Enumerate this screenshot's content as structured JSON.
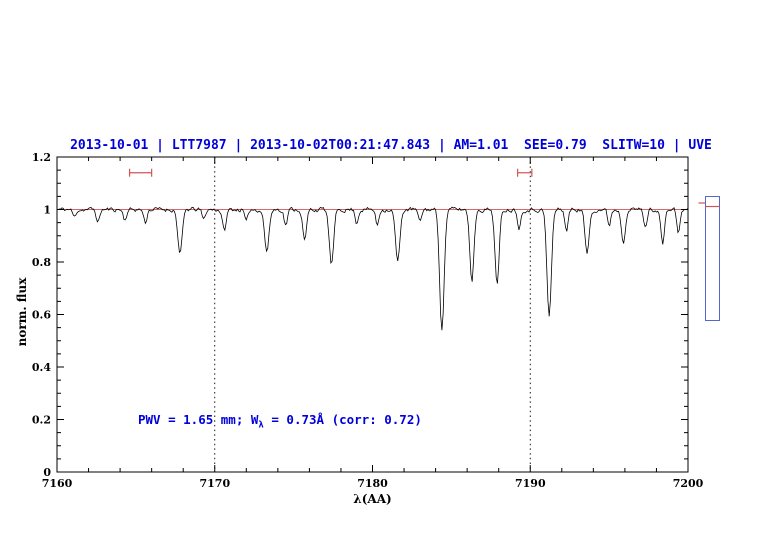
{
  "chart_data": {
    "type": "line",
    "title": "2013-10-01 | LTT7987 | 2013-10-02T00:21:47.843 | AM=1.01  SEE=0.79  SLITW=10 | UVE",
    "title_color": "#0000dd",
    "xlabel": "λ(AA)",
    "ylabel": "norm. flux",
    "xlim": [
      7160,
      7200
    ],
    "ylim": [
      0,
      1.2
    ],
    "x_tick_values": [
      7160,
      7170,
      7180,
      7190,
      7200
    ],
    "y_tick_values": [
      0,
      0.2,
      0.4,
      0.6,
      0.8,
      1,
      1.2
    ],
    "grid": false,
    "legend_position": "none",
    "dotted_vlines": [
      7170,
      7190
    ],
    "continuum_level": 1.0,
    "continuum_color": "#d46a6a",
    "spectrum_color": "#000000",
    "annotation": {
      "pre": "PWV = 1.65 mm; W",
      "sub": "λ",
      "post": " = 0.73Å (corr: 0.72)",
      "color": "#0000dd"
    },
    "noise": {
      "amplitude": 0.009,
      "seed": 11
    },
    "sample_step": 0.08,
    "absorption_lines": [
      [
        7161.1,
        0.03,
        0.1
      ],
      [
        7162.6,
        0.05,
        0.1
      ],
      [
        7164.3,
        0.04,
        0.1
      ],
      [
        7165.6,
        0.05,
        0.1
      ],
      [
        7167.8,
        0.17,
        0.14
      ],
      [
        7169.3,
        0.04,
        0.1
      ],
      [
        7170.6,
        0.08,
        0.12
      ],
      [
        7172.0,
        0.05,
        0.1
      ],
      [
        7173.3,
        0.16,
        0.14
      ],
      [
        7174.5,
        0.06,
        0.1
      ],
      [
        7175.7,
        0.12,
        0.12
      ],
      [
        7177.4,
        0.21,
        0.14
      ],
      [
        7179.0,
        0.05,
        0.1
      ],
      [
        7180.3,
        0.06,
        0.1
      ],
      [
        7181.6,
        0.2,
        0.14
      ],
      [
        7183.0,
        0.05,
        0.1
      ],
      [
        7184.4,
        0.46,
        0.14
      ],
      [
        7186.3,
        0.27,
        0.13
      ],
      [
        7187.9,
        0.29,
        0.13
      ],
      [
        7189.3,
        0.07,
        0.1
      ],
      [
        7191.2,
        0.41,
        0.14
      ],
      [
        7192.3,
        0.08,
        0.1
      ],
      [
        7193.6,
        0.17,
        0.13
      ],
      [
        7195.0,
        0.06,
        0.1
      ],
      [
        7195.9,
        0.12,
        0.12
      ],
      [
        7197.3,
        0.07,
        0.1
      ],
      [
        7198.4,
        0.13,
        0.12
      ],
      [
        7199.4,
        0.09,
        0.1
      ]
    ],
    "top_markers": [
      {
        "x1": 7164.6,
        "x2": 7166.0,
        "y": 1.14
      },
      {
        "x1": 7189.2,
        "x2": 7190.1,
        "y": 1.14
      }
    ],
    "marker_color": "#d45454"
  },
  "side_gauge": {
    "border_color": "#5566cc",
    "marker_color": "#d45454"
  }
}
